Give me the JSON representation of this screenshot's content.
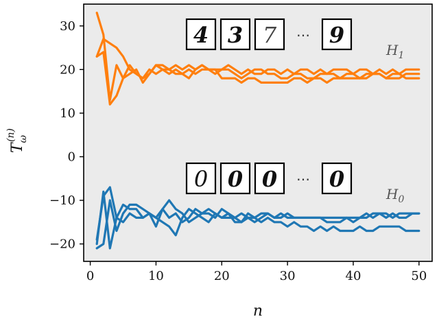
{
  "chart_data": {
    "type": "line",
    "title": "",
    "xlabel": "n",
    "ylabel": "T",
    "ylabel_sub": "ω",
    "ylabel_sup": "(n)",
    "xlim": [
      -1,
      52
    ],
    "ylim": [
      -24,
      35
    ],
    "xticks": [
      0,
      10,
      20,
      30,
      40,
      50
    ],
    "yticks": [
      -20,
      -10,
      0,
      10,
      20,
      30
    ],
    "grid": false,
    "background": "#ebebeb",
    "groups": [
      {
        "hypothesis_symbol": "H",
        "hypothesis_sub": "1",
        "color": "#ff7f0e",
        "digit_strip": [
          "4",
          "3",
          "7",
          "9"
        ],
        "ellipsis": "⋯",
        "series": [
          {
            "x": [
              1,
              2,
              3,
              4,
              5,
              6,
              7,
              8,
              9,
              10,
              11,
              12,
              13,
              14,
              15,
              16,
              17,
              18,
              19,
              20,
              21,
              22,
              23,
              24,
              25,
              26,
              27,
              28,
              29,
              30,
              31,
              32,
              33,
              34,
              35,
              36,
              37,
              38,
              39,
              40,
              41,
              42,
              43,
              44,
              45,
              46,
              47,
              48,
              49,
              50
            ],
            "values": [
              33,
              28,
              13,
              21,
              18,
              21,
              19,
              18,
              20,
              19,
              20,
              20,
              21,
              20,
              21,
              20,
              21,
              20,
              20,
              20,
              21,
              20,
              19,
              20,
              19,
              19,
              20,
              20,
              19,
              20,
              19,
              20,
              20,
              19,
              20,
              19,
              20,
              20,
              20,
              19,
              20,
              20,
              19,
              20,
              19,
              20,
              19,
              20,
              20,
              20
            ]
          },
          {
            "x": [
              1,
              2,
              3,
              4,
              5,
              6,
              7,
              8,
              9,
              10,
              11,
              12,
              13,
              14,
              15,
              16,
              17,
              18,
              19,
              20,
              21,
              22,
              23,
              24,
              25,
              26,
              27,
              28,
              29,
              30,
              31,
              32,
              33,
              34,
              35,
              36,
              37,
              38,
              39,
              40,
              41,
              42,
              43,
              44,
              45,
              46,
              47,
              48,
              49,
              50
            ],
            "values": [
              23,
              24,
              12,
              14,
              18,
              19,
              20,
              17,
              19,
              21,
              20,
              19,
              20,
              19,
              18,
              20,
              21,
              20,
              19,
              20,
              20,
              19,
              18,
              19,
              20,
              20,
              19,
              19,
              18,
              18,
              19,
              19,
              18,
              18,
              19,
              19,
              19,
              18,
              19,
              19,
              18,
              19,
              19,
              19,
              18,
              18,
              18,
              19,
              19,
              19
            ]
          },
          {
            "x": [
              1,
              2,
              3,
              4,
              5,
              6,
              7,
              8,
              9,
              10,
              11,
              12,
              13,
              14,
              15,
              16,
              17,
              18,
              19,
              20,
              21,
              22,
              23,
              24,
              25,
              26,
              27,
              28,
              29,
              30,
              31,
              32,
              33,
              34,
              35,
              36,
              37,
              38,
              39,
              40,
              41,
              42,
              43,
              44,
              45,
              46,
              47,
              48,
              49,
              50
            ],
            "values": [
              23,
              27,
              26,
              25,
              23,
              20,
              19,
              18,
              19,
              21,
              21,
              20,
              19,
              19,
              20,
              19,
              20,
              20,
              20,
              18,
              18,
              18,
              17,
              18,
              18,
              17,
              17,
              17,
              17,
              17,
              18,
              18,
              17,
              18,
              18,
              17,
              18,
              18,
              18,
              18,
              18,
              18,
              19,
              19,
              18,
              19,
              19,
              18,
              18,
              18
            ]
          }
        ]
      },
      {
        "hypothesis_symbol": "H",
        "hypothesis_sub": "0",
        "color": "#1f77b4",
        "digit_strip": [
          "0",
          "0",
          "0",
          "0"
        ],
        "ellipsis": "⋯",
        "series": [
          {
            "x": [
              1,
              2,
              3,
              4,
              5,
              6,
              7,
              8,
              9,
              10,
              11,
              12,
              13,
              14,
              15,
              16,
              17,
              18,
              19,
              20,
              21,
              22,
              23,
              24,
              25,
              26,
              27,
              28,
              29,
              30,
              31,
              32,
              33,
              34,
              35,
              36,
              37,
              38,
              39,
              40,
              41,
              42,
              43,
              44,
              45,
              46,
              47,
              48,
              49,
              50
            ],
            "values": [
              -20,
              -8,
              -21,
              -14,
              -11,
              -12,
              -12,
              -14,
              -13,
              -16,
              -12,
              -14,
              -13,
              -15,
              -14,
              -12,
              -13,
              -12,
              -13,
              -14,
              -13,
              -14,
              -15,
              -13,
              -14,
              -13,
              -13,
              -14,
              -13,
              -14,
              -14,
              -14,
              -14,
              -14,
              -14,
              -14,
              -14,
              -14,
              -14,
              -14,
              -14,
              -13,
              -14,
              -13,
              -14,
              -13,
              -14,
              -14,
              -13,
              -13
            ]
          },
          {
            "x": [
              1,
              2,
              3,
              4,
              5,
              6,
              7,
              8,
              9,
              10,
              11,
              12,
              13,
              14,
              15,
              16,
              17,
              18,
              19,
              20,
              21,
              22,
              23,
              24,
              25,
              26,
              27,
              28,
              29,
              30,
              31,
              32,
              33,
              34,
              35,
              36,
              37,
              38,
              39,
              40,
              41,
              42,
              43,
              44,
              45,
              46,
              47,
              48,
              49,
              50
            ],
            "values": [
              -19,
              -9,
              -7,
              -14,
              -15,
              -13,
              -14,
              -14,
              -13,
              -14,
              -15,
              -16,
              -18,
              -14,
              -12,
              -13,
              -14,
              -15,
              -13,
              -14,
              -14,
              -14,
              -13,
              -14,
              -15,
              -14,
              -13,
              -14,
              -14,
              -13,
              -14,
              -14,
              -14,
              -14,
              -14,
              -15,
              -15,
              -15,
              -14,
              -15,
              -14,
              -14,
              -13,
              -13,
              -13,
              -14,
              -13,
              -13,
              -13,
              -13
            ]
          },
          {
            "x": [
              1,
              2,
              3,
              4,
              5,
              6,
              7,
              8,
              9,
              10,
              11,
              12,
              13,
              14,
              15,
              16,
              17,
              18,
              19,
              20,
              21,
              22,
              23,
              24,
              25,
              26,
              27,
              28,
              29,
              30,
              31,
              32,
              33,
              34,
              35,
              36,
              37,
              38,
              39,
              40,
              41,
              42,
              43,
              44,
              45,
              46,
              47,
              48,
              49,
              50
            ],
            "values": [
              -21,
              -20,
              -10,
              -17,
              -13,
              -11,
              -11,
              -12,
              -13,
              -14,
              -12,
              -10,
              -12,
              -13,
              -15,
              -14,
              -13,
              -13,
              -14,
              -12,
              -13,
              -15,
              -15,
              -14,
              -14,
              -15,
              -14,
              -15,
              -15,
              -16,
              -15,
              -16,
              -16,
              -17,
              -16,
              -17,
              -16,
              -17,
              -17,
              -17,
              -16,
              -17,
              -17,
              -16,
              -16,
              -16,
              -16,
              -17,
              -17,
              -17
            ]
          }
        ]
      }
    ]
  }
}
